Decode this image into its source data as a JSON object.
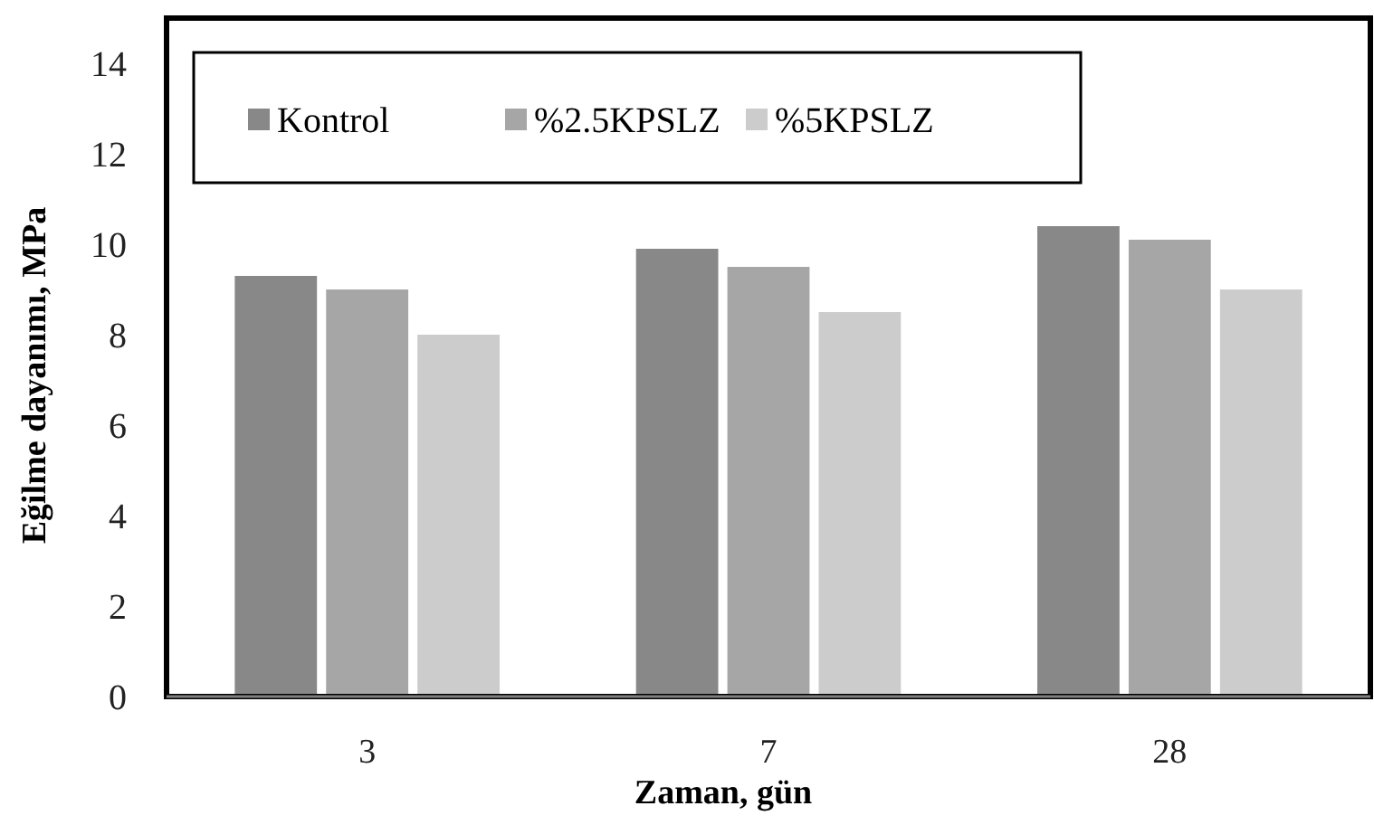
{
  "chart_data": {
    "type": "bar",
    "xlabel": "Zaman,  gün",
    "ylabel": "Eğilme dayanımı,  MPa",
    "categories": [
      "3",
      "7",
      "28"
    ],
    "series": [
      {
        "name": "Kontrol",
        "color": "#888888",
        "values": [
          9.3,
          9.9,
          10.4
        ]
      },
      {
        "name": "%2.5KPSLZ",
        "color": "#a6a6a6",
        "values": [
          9.0,
          9.5,
          10.1
        ]
      },
      {
        "name": "%5KPSLZ",
        "color": "#cccccc",
        "values": [
          8.0,
          8.5,
          9.0
        ]
      }
    ],
    "ylim": [
      0,
      15
    ],
    "yticks": [
      0,
      2,
      4,
      6,
      8,
      10,
      12,
      14
    ],
    "grid": false,
    "legend": "top"
  }
}
